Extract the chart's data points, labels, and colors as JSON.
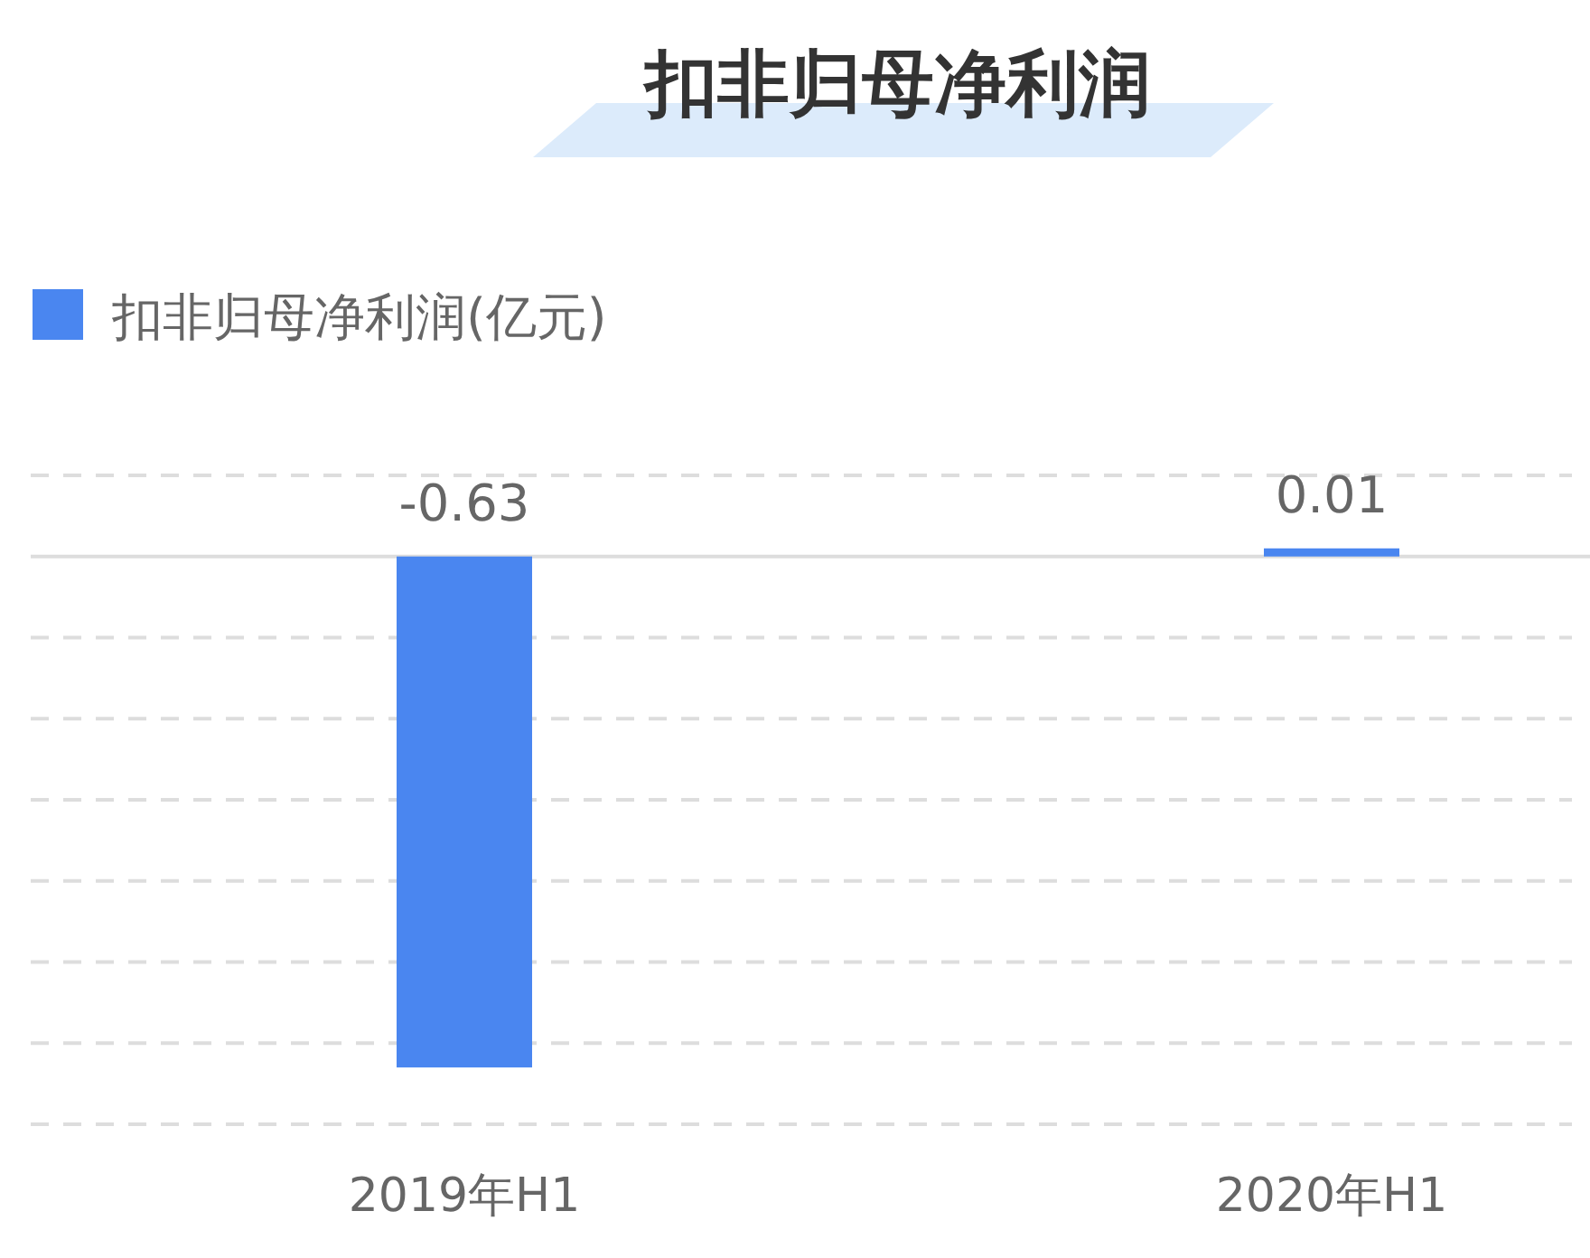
{
  "chart_data": {
    "type": "bar",
    "title": "扣非归母净利润",
    "categories": [
      "2019年H1",
      "2020年H1"
    ],
    "series": [
      {
        "name": "扣非归母净利润(亿元)",
        "color": "#4a86f0",
        "values": [
          -0.63,
          0.01
        ]
      }
    ],
    "ylim": [
      -0.7,
      0.1
    ],
    "yticks": [
      {
        "value": -0.7,
        "label": null
      },
      {
        "value": -0.6,
        "label": null
      },
      {
        "value": -0.5,
        "label": null
      },
      {
        "value": -0.4,
        "label": null
      },
      {
        "value": -0.3,
        "label": null
      },
      {
        "value": -0.2,
        "label": null
      },
      {
        "value": -0.1,
        "label": null
      },
      {
        "value": 0.1,
        "label": null
      }
    ],
    "tick_labels": "x",
    "grid": "y",
    "data_labels": true,
    "legend": "top left"
  }
}
